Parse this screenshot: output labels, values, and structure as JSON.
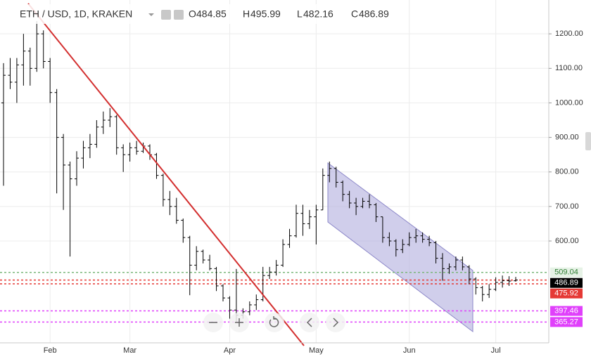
{
  "chart_data": {
    "type": "ohlc",
    "title": "ETH / USD, 1D, KRAKEN",
    "legend_labels": [
      "O",
      "H",
      "L",
      "C"
    ],
    "categories": [
      null,
      null,
      null,
      null,
      null,
      null,
      null,
      "Feb",
      null,
      null,
      null,
      null,
      null,
      null,
      null,
      null,
      null,
      null,
      null,
      "Mar",
      null,
      null,
      null,
      null,
      null,
      null,
      null,
      null,
      null,
      null,
      null,
      null,
      null,
      null,
      "Apr",
      null,
      null,
      null,
      null,
      null,
      null,
      null,
      null,
      null,
      null,
      null,
      null,
      "May",
      null,
      null,
      null,
      null,
      null,
      null,
      null,
      null,
      null,
      null,
      null,
      null,
      null,
      "Jun",
      null,
      null,
      null,
      null,
      null,
      null,
      null,
      null,
      null,
      null,
      null,
      null,
      "Jul",
      null,
      null,
      null
    ],
    "open": [
      1000,
      1080,
      1060,
      1110,
      1150,
      1100,
      1200,
      1120,
      1030,
      900,
      820,
      780,
      840,
      870,
      880,
      930,
      950,
      960,
      870,
      850,
      870,
      860,
      875,
      850,
      790,
      720,
      700,
      660,
      610,
      530,
      570,
      545,
      520,
      470,
      435,
      400,
      385,
      395,
      415,
      430,
      500,
      510,
      530,
      590,
      615,
      680,
      650,
      670,
      690,
      790,
      810,
      770,
      735,
      710,
      700,
      715,
      705,
      670,
      610,
      600,
      575,
      590,
      610,
      615,
      605,
      595,
      550,
      520,
      525,
      545,
      525,
      490,
      465,
      445,
      460,
      480,
      485,
      484.85
    ],
    "high": [
      1115,
      1130,
      1130,
      1200,
      1160,
      1237,
      1210,
      1130,
      1040,
      910,
      830,
      860,
      890,
      910,
      950,
      975,
      985,
      965,
      880,
      885,
      890,
      885,
      880,
      855,
      795,
      745,
      725,
      665,
      615,
      585,
      575,
      560,
      525,
      475,
      440,
      519,
      405,
      425,
      445,
      525,
      525,
      545,
      605,
      635,
      705,
      705,
      690,
      705,
      810,
      830,
      815,
      775,
      745,
      725,
      725,
      735,
      710,
      670,
      625,
      605,
      605,
      625,
      635,
      625,
      615,
      600,
      565,
      535,
      555,
      555,
      530,
      495,
      470,
      475,
      495,
      500,
      498,
      495.99
    ],
    "low": [
      760,
      1040,
      1000,
      1050,
      1050,
      1090,
      1100,
      1000,
      738,
      690,
      555,
      760,
      810,
      840,
      870,
      910,
      930,
      850,
      800,
      830,
      850,
      855,
      835,
      780,
      700,
      675,
      650,
      595,
      443,
      515,
      535,
      515,
      455,
      425,
      375,
      365,
      375,
      385,
      400,
      425,
      490,
      500,
      525,
      580,
      610,
      615,
      635,
      590,
      690,
      770,
      755,
      715,
      695,
      675,
      695,
      695,
      655,
      595,
      585,
      555,
      565,
      585,
      595,
      595,
      585,
      535,
      485,
      505,
      515,
      515,
      475,
      445,
      425,
      435,
      455,
      465,
      470,
      482.16
    ],
    "close": [
      1080,
      1060,
      1110,
      1150,
      1100,
      1200,
      1120,
      1030,
      900,
      820,
      780,
      840,
      870,
      880,
      930,
      950,
      960,
      870,
      850,
      870,
      860,
      875,
      850,
      790,
      720,
      700,
      660,
      610,
      530,
      570,
      545,
      520,
      470,
      435,
      400,
      385,
      395,
      415,
      430,
      500,
      510,
      530,
      590,
      615,
      680,
      650,
      670,
      690,
      790,
      810,
      770,
      735,
      710,
      700,
      715,
      705,
      670,
      610,
      600,
      575,
      590,
      610,
      615,
      605,
      595,
      550,
      520,
      525,
      545,
      525,
      490,
      465,
      445,
      460,
      480,
      485,
      484,
      486.89
    ],
    "color": "#000000",
    "ylim": [
      305,
      1298
    ],
    "yticks": [
      {
        "value": 600,
        "label": "600.00"
      },
      {
        "value": 700,
        "label": "700.00"
      },
      {
        "value": 800,
        "label": "800.00"
      },
      {
        "value": 900,
        "label": "900.00"
      },
      {
        "value": 1000,
        "label": "1000.00"
      },
      {
        "value": 1100,
        "label": "1100.00"
      },
      {
        "value": 1200,
        "label": "1200.00"
      }
    ],
    "grid": true,
    "levels": [
      {
        "value": 509.04,
        "color": "#7cb87c",
        "label_color": "#2e7d32",
        "label_bg": "#e6f2e6"
      },
      {
        "value": 486.89,
        "color": "#e53935",
        "label_color": "#ffffff",
        "label_bg": "#000000"
      },
      {
        "value": 475.92,
        "color": "#e53935",
        "label_color": "#ffffff",
        "label_bg": "#e53935"
      },
      {
        "value": 397.46,
        "color": "#e040fb",
        "label_color": "#ffffff",
        "label_bg": "#e040fb"
      },
      {
        "value": 365.27,
        "color": "#e040fb",
        "label_color": "#ffffff",
        "label_bg": "#e040fb"
      }
    ]
  }
}
